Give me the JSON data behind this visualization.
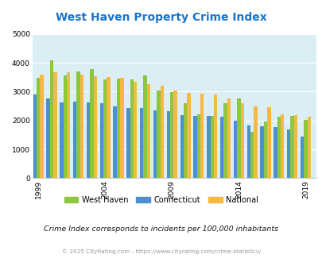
{
  "title": "West Haven Property Crime Index",
  "years": [
    1999,
    2000,
    2001,
    2002,
    2003,
    2004,
    2005,
    2006,
    2007,
    2008,
    2009,
    2010,
    2011,
    2012,
    2013,
    2014,
    2015,
    2016,
    2017,
    2018,
    2019
  ],
  "west_haven": [
    3490,
    4100,
    3560,
    3700,
    3780,
    3430,
    3450,
    3430,
    3560,
    3050,
    2990,
    2600,
    2220,
    2170,
    2590,
    2760,
    1600,
    1960,
    2120,
    2170,
    2010
  ],
  "connecticut": [
    2900,
    2760,
    2640,
    2650,
    2640,
    2590,
    2500,
    2440,
    2440,
    2340,
    2330,
    2180,
    2160,
    2150,
    2140,
    1990,
    1820,
    1800,
    1770,
    1680,
    1450
  ],
  "national": [
    3590,
    3680,
    3670,
    3600,
    3530,
    3520,
    3470,
    3350,
    3250,
    3200,
    3050,
    2960,
    2940,
    2890,
    2760,
    2590,
    2490,
    2460,
    2210,
    2200,
    2120
  ],
  "west_haven_color": "#8dc63f",
  "connecticut_color": "#4d90d0",
  "national_color": "#f5b942",
  "bg_color": "#daeef4",
  "grid_color": "#c0d8e0",
  "ylabel_ticks": [
    0,
    1000,
    2000,
    3000,
    4000,
    5000
  ],
  "xtick_years": [
    1999,
    2004,
    2009,
    2014,
    2019
  ],
  "subtitle": "Crime Index corresponds to incidents per 100,000 inhabitants",
  "footer": "© 2025 CityRating.com - https://www.cityrating.com/crime-statistics/",
  "title_color": "#1874cd",
  "subtitle_color": "#1a1a1a",
  "footer_color": "#999999"
}
